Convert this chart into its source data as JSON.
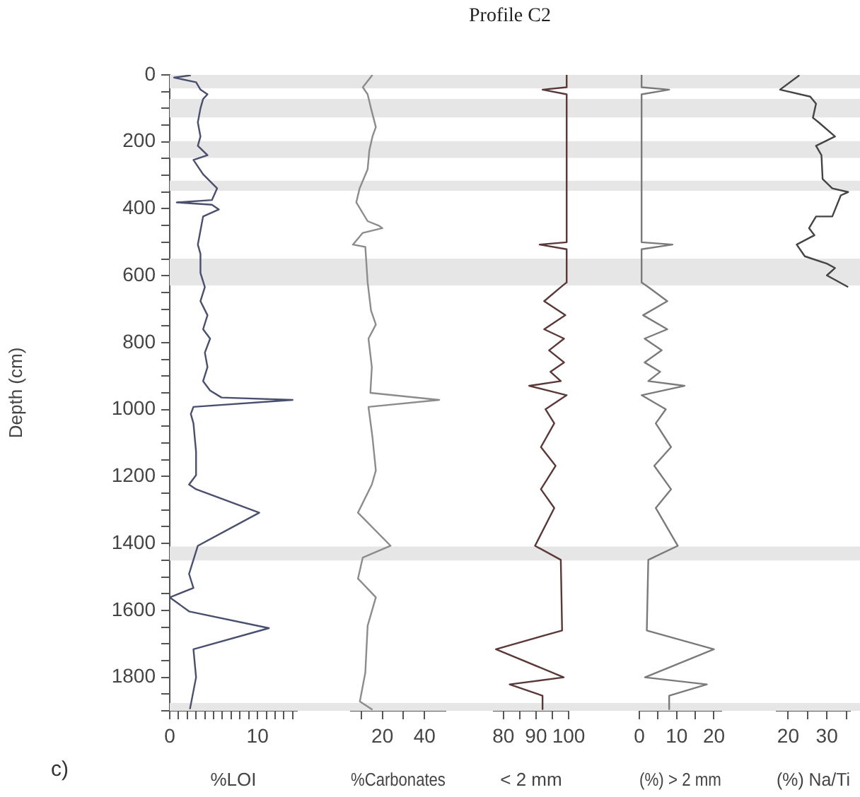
{
  "chart_data": [
    {
      "type": "line",
      "ylabel": "Depth (cm)",
      "xlabel": "%LOI",
      "annotations": [
        "c)"
      ],
      "color": "#4a4f6e",
      "marker": "none",
      "grid": false,
      "legend": false,
      "x": [
        2.4,
        0.5,
        3.0,
        3.5,
        4.3,
        3.8,
        3.5,
        3.2,
        3.5,
        3.2,
        4.3,
        2.7,
        3.8,
        5.4,
        4.8,
        0.8,
        4.8,
        5.6,
        3.8,
        3.5,
        3.2,
        3.5,
        3.5,
        4.0,
        3.5,
        4.3,
        3.8,
        4.6,
        4.0,
        4.3,
        3.8,
        4.6,
        5.9,
        14,
        2.7,
        2.4,
        2.7,
        3.0,
        3.0,
        2.2,
        3.0,
        10.2,
        3.2,
        2.7,
        2.2,
        2.7,
        0,
        2.2,
        11.3,
        2.7,
        3.0,
        2.3
      ],
      "values": [
        1,
        8,
        22,
        44,
        58,
        72,
        100,
        142,
        184,
        212,
        240,
        254,
        297,
        339,
        374,
        381,
        388,
        402,
        423,
        465,
        507,
        535,
        592,
        634,
        676,
        718,
        760,
        788,
        830,
        873,
        915,
        943,
        964,
        971,
        992,
        1013,
        1041,
        1126,
        1196,
        1224,
        1238,
        1308,
        1407,
        1449,
        1491,
        1533,
        1561,
        1603,
        1653,
        1716,
        1800,
        1895
      ],
      "xlim": [
        0,
        14.5
      ],
      "xticks": [
        0,
        {
          "value": 1,
          "label": null
        },
        {
          "value": 2,
          "label": null
        },
        {
          "value": 3,
          "label": null
        },
        {
          "value": 4,
          "label": null
        },
        {
          "value": 5,
          "label": null
        },
        {
          "value": 6,
          "label": null
        },
        {
          "value": 7,
          "label": null
        },
        {
          "value": 8,
          "label": null
        },
        {
          "value": 9,
          "label": null
        },
        10,
        {
          "value": 11,
          "label": null
        },
        {
          "value": 12,
          "label": null
        },
        {
          "value": 13,
          "label": null
        },
        {
          "value": 14,
          "label": null
        }
      ],
      "ylim": [
        1900,
        0
      ],
      "yticks": [
        0,
        {
          "value": 50,
          "label": null
        },
        {
          "value": 100,
          "label": null
        },
        {
          "value": 150,
          "label": null
        },
        200,
        {
          "value": 250,
          "label": null
        },
        {
          "value": 300,
          "label": null
        },
        {
          "value": 350,
          "label": null
        },
        400,
        {
          "value": 450,
          "label": null
        },
        {
          "value": 500,
          "label": null
        },
        {
          "value": 550,
          "label": null
        },
        600,
        {
          "value": 650,
          "label": null
        },
        {
          "value": 700,
          "label": null
        },
        {
          "value": 750,
          "label": null
        },
        800,
        {
          "value": 850,
          "label": null
        },
        {
          "value": 900,
          "label": null
        },
        {
          "value": 950,
          "label": null
        },
        1000,
        {
          "value": 1050,
          "label": null
        },
        {
          "value": 1100,
          "label": null
        },
        {
          "value": 1150,
          "label": null
        },
        1200,
        {
          "value": 1250,
          "label": null
        },
        {
          "value": 1300,
          "label": null
        },
        {
          "value": 1350,
          "label": null
        },
        1400,
        {
          "value": 1450,
          "label": null
        },
        {
          "value": 1500,
          "label": null
        },
        {
          "value": 1550,
          "label": null
        },
        1600,
        {
          "value": 1650,
          "label": null
        },
        {
          "value": 1700,
          "label": null
        },
        {
          "value": 1750,
          "label": null
        },
        1800,
        {
          "value": 1850,
          "label": null
        },
        {
          "value": 1900,
          "label": null
        }
      ],
      "bands": [
        {
          "axis": "y",
          "from": 0,
          "to": 40,
          "color": "#e6e6e6"
        },
        {
          "axis": "y",
          "from": 72,
          "to": 127,
          "color": "#e6e6e6"
        },
        {
          "axis": "y",
          "from": 198,
          "to": 248,
          "color": "#e6e6e6"
        },
        {
          "axis": "y",
          "from": 316,
          "to": 346,
          "color": "#e6e6e6"
        },
        {
          "axis": "y",
          "from": 549,
          "to": 629,
          "color": "#e6e6e6"
        },
        {
          "axis": "y",
          "from": 1409,
          "to": 1451,
          "color": "#e6e6e6"
        },
        {
          "axis": "y",
          "from": 1877,
          "to": 1900,
          "color": "#e6e6e6"
        }
      ]
    },
    {
      "type": "line",
      "xlabel": "%Carbonates",
      "color": "#8c8c8c",
      "marker": "none",
      "grid": false,
      "legend": false,
      "tick_labels": "x",
      "x": [
        15.3,
        10.7,
        13.0,
        14.6,
        16.9,
        15.3,
        13.8,
        13.0,
        9.2,
        7.6,
        13.0,
        18.5,
        20.0,
        10.7,
        6.0,
        11.9,
        13.0,
        14.6,
        16.9,
        13.4,
        15.0,
        14.3,
        47,
        13.4,
        15.3,
        16.9,
        15.0,
        8.4,
        23.9,
        10.7,
        8.4,
        16.9,
        13.0,
        11.9,
        9.3,
        15.3
      ],
      "values": [
        0,
        37,
        58,
        100,
        156,
        184,
        226,
        282,
        339,
        381,
        437,
        451,
        458,
        472,
        507,
        514,
        620,
        704,
        746,
        788,
        873,
        950,
        971,
        992,
        1083,
        1182,
        1224,
        1308,
        1407,
        1442,
        1505,
        1561,
        1646,
        1786,
        1872,
        1897
      ],
      "xlim": [
        5,
        50
      ],
      "xticks": [
        {
          "value": 10,
          "label": null
        },
        20,
        {
          "value": 30,
          "label": null
        },
        40
      ],
      "ylim": [
        1900,
        0
      ],
      "bands": [
        {
          "axis": "y",
          "from": 0,
          "to": 40,
          "color": "#e6e6e6"
        },
        {
          "axis": "y",
          "from": 72,
          "to": 127,
          "color": "#e6e6e6"
        },
        {
          "axis": "y",
          "from": 198,
          "to": 248,
          "color": "#e6e6e6"
        },
        {
          "axis": "y",
          "from": 316,
          "to": 346,
          "color": "#e6e6e6"
        },
        {
          "axis": "y",
          "from": 549,
          "to": 629,
          "color": "#e6e6e6"
        },
        {
          "axis": "y",
          "from": 1409,
          "to": 1451,
          "color": "#e6e6e6"
        },
        {
          "axis": "y",
          "from": 1877,
          "to": 1900,
          "color": "#e6e6e6"
        }
      ]
    },
    {
      "type": "line",
      "title": "Profile C2",
      "xlabel": "< 2 mm",
      "color": "#5a3838",
      "marker": "none",
      "grid": false,
      "legend": false,
      "tick_labels": "x",
      "x": [
        99.4,
        99.4,
        92.0,
        99.4,
        99.4,
        91.1,
        99.4,
        99.4,
        97.6,
        92.5,
        99.0,
        92.5,
        98.6,
        94.0,
        98.6,
        94.4,
        97.6,
        87.9,
        99.4,
        92.9,
        95.6,
        91.5,
        96.0,
        91.5,
        95.6,
        89.7,
        97.6,
        98.0,
        77.7,
        98.5,
        81.9,
        92.0,
        92.0
      ],
      "values": [
        0,
        37,
        44,
        58,
        500,
        507,
        521,
        620,
        634,
        676,
        718,
        760,
        788,
        823,
        859,
        887,
        915,
        929,
        957,
        999,
        1041,
        1112,
        1168,
        1238,
        1294,
        1407,
        1449,
        1660,
        1716,
        1800,
        1821,
        1855,
        1895
      ],
      "xlim": [
        77,
        100
      ],
      "xticks": [
        80,
        {
          "value": 85,
          "label": null
        },
        90,
        {
          "value": 95,
          "label": null
        },
        100
      ],
      "ylim": [
        1900,
        0
      ],
      "bands": [
        {
          "axis": "y",
          "from": 0,
          "to": 40,
          "color": "#e6e6e6"
        },
        {
          "axis": "y",
          "from": 72,
          "to": 127,
          "color": "#e6e6e6"
        },
        {
          "axis": "y",
          "from": 198,
          "to": 248,
          "color": "#e6e6e6"
        },
        {
          "axis": "y",
          "from": 316,
          "to": 346,
          "color": "#e6e6e6"
        },
        {
          "axis": "y",
          "from": 549,
          "to": 629,
          "color": "#e6e6e6"
        },
        {
          "axis": "y",
          "from": 1409,
          "to": 1451,
          "color": "#e6e6e6"
        },
        {
          "axis": "y",
          "from": 1877,
          "to": 1900,
          "color": "#e6e6e6"
        }
      ]
    },
    {
      "type": "line",
      "xlabel": "(%) > 2 mm",
      "color": "#7a7a7a",
      "marker": "none",
      "grid": false,
      "legend": false,
      "tick_labels": "x",
      "x": [
        0.6,
        0.6,
        8.0,
        0.6,
        0.6,
        8.9,
        0.6,
        0.6,
        2.4,
        7.5,
        1.0,
        7.5,
        1.4,
        6.0,
        1.4,
        5.6,
        2.4,
        12.1,
        0.6,
        7.1,
        4.4,
        8.5,
        4.0,
        8.5,
        4.4,
        10.3,
        2.4,
        2.0,
        20,
        1.5,
        18.1,
        8.0,
        8.0
      ],
      "values": [
        0,
        37,
        44,
        58,
        500,
        507,
        521,
        620,
        634,
        676,
        718,
        760,
        788,
        823,
        859,
        887,
        915,
        929,
        957,
        999,
        1041,
        1112,
        1168,
        1238,
        1294,
        1407,
        1449,
        1660,
        1716,
        1800,
        1821,
        1855,
        1895
      ],
      "xlim": [
        0,
        22
      ],
      "xticks": [
        0,
        {
          "value": 5,
          "label": null
        },
        10,
        {
          "value": 15,
          "label": null
        },
        20
      ],
      "ylim": [
        1900,
        0
      ],
      "bands": [
        {
          "axis": "y",
          "from": 0,
          "to": 40,
          "color": "#e6e6e6"
        },
        {
          "axis": "y",
          "from": 72,
          "to": 127,
          "color": "#e6e6e6"
        },
        {
          "axis": "y",
          "from": 198,
          "to": 248,
          "color": "#e6e6e6"
        },
        {
          "axis": "y",
          "from": 316,
          "to": 346,
          "color": "#e6e6e6"
        },
        {
          "axis": "y",
          "from": 549,
          "to": 629,
          "color": "#e6e6e6"
        },
        {
          "axis": "y",
          "from": 1409,
          "to": 1451,
          "color": "#e6e6e6"
        },
        {
          "axis": "y",
          "from": 1877,
          "to": 1900,
          "color": "#e6e6e6"
        }
      ]
    },
    {
      "type": "line",
      "xlabel": "(%) Na/Ti",
      "color": "#444444",
      "marker": "none",
      "grid": false,
      "legend": false,
      "tick_labels": "x",
      "x": [
        22.9,
        17.9,
        25.7,
        27.2,
        26.4,
        27.9,
        32.1,
        27.2,
        28.6,
        28.9,
        31.4,
        35.5,
        33.6,
        31.4,
        27.2,
        25.4,
        26.8,
        22.2,
        24.3,
        30.0,
        32.1,
        30.0,
        35.5
      ],
      "values": [
        1,
        44,
        65,
        86,
        128,
        142,
        184,
        212,
        240,
        311,
        339,
        350,
        360,
        423,
        423,
        458,
        479,
        507,
        542,
        564,
        577,
        599,
        634
      ],
      "xlim": [
        17,
        36
      ],
      "xticks": [
        20,
        {
          "value": 25,
          "label": null
        },
        30,
        {
          "value": 35,
          "label": null
        }
      ],
      "ylim": [
        1900,
        0
      ],
      "bands": [
        {
          "axis": "y",
          "from": 0,
          "to": 40,
          "color": "#e6e6e6"
        },
        {
          "axis": "y",
          "from": 72,
          "to": 127,
          "color": "#e6e6e6"
        },
        {
          "axis": "y",
          "from": 198,
          "to": 248,
          "color": "#e6e6e6"
        },
        {
          "axis": "y",
          "from": 316,
          "to": 346,
          "color": "#e6e6e6"
        },
        {
          "axis": "y",
          "from": 549,
          "to": 629,
          "color": "#e6e6e6"
        },
        {
          "axis": "y",
          "from": 1409,
          "to": 1451,
          "color": "#e6e6e6"
        },
        {
          "axis": "y",
          "from": 1877,
          "to": 1900,
          "color": "#e6e6e6"
        }
      ]
    }
  ]
}
